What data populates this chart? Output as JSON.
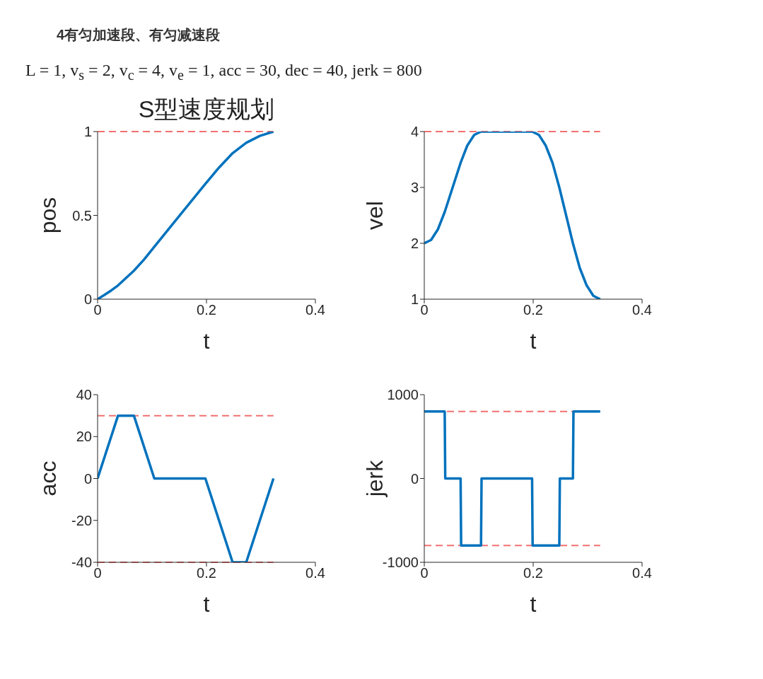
{
  "chart_data": [
    {
      "type": "line",
      "title": "S型速度规划",
      "annotations": [
        "4有匀加速段、有匀减速段",
        "L = 1, v$_{s}$ = 2, v$_{c}$ = 4, v$_{e}$ = 1, acc = 30, dec = 40, jerk = 800"
      ],
      "xlabel": "t",
      "ylabel": "pos",
      "xlim": [
        0,
        0.4
      ],
      "xticks": [
        0,
        0.2,
        0.4
      ],
      "ylim": [
        0,
        1
      ],
      "yticks": [
        0,
        0.5,
        1
      ],
      "series": [
        {
          "color": "#0072bd",
          "x": [
            0,
            0.0125,
            0.025,
            0.0375,
            0.0667,
            0.0854,
            0.1042,
            0.198,
            0.223,
            0.248,
            0.273,
            0.298,
            0.323
          ],
          "values": [
            0,
            0.025,
            0.052,
            0.082,
            0.17,
            0.237,
            0.313,
            0.688,
            0.785,
            0.871,
            0.933,
            0.974,
            1
          ]
        }
      ],
      "ref_lines": [
        {
          "axis": "y",
          "value": 1,
          "color": "#f27070",
          "line_style": "dashed"
        }
      ]
    },
    {
      "type": "line",
      "xlabel": "t",
      "ylabel": "vel",
      "xlim": [
        0,
        0.4
      ],
      "xticks": [
        0,
        0.2,
        0.4
      ],
      "ylim": [
        1,
        4
      ],
      "yticks": [
        1,
        2,
        3,
        4
      ],
      "series": [
        {
          "color": "#0072bd",
          "x": [
            0,
            0.0125,
            0.025,
            0.0375,
            0.0667,
            0.079,
            0.0917,
            0.1042,
            0.198,
            0.2105,
            0.223,
            0.2355,
            0.248,
            0.273,
            0.2855,
            0.298,
            0.3105,
            0.323
          ],
          "values": [
            2,
            2.06,
            2.25,
            2.56,
            3.44,
            3.75,
            3.94,
            4,
            4,
            3.94,
            3.75,
            3.44,
            3,
            2,
            1.56,
            1.25,
            1.06,
            1
          ]
        }
      ],
      "ref_lines": [
        {
          "axis": "y",
          "value": 4,
          "color": "#f27070",
          "line_style": "dashed"
        }
      ]
    },
    {
      "type": "line",
      "xlabel": "t",
      "ylabel": "acc",
      "xlim": [
        0,
        0.4
      ],
      "xticks": [
        0,
        0.2,
        0.4
      ],
      "ylim": [
        -40,
        40
      ],
      "yticks": [
        -40,
        -20,
        0,
        20,
        40
      ],
      "series": [
        {
          "color": "#0072bd",
          "x": [
            0,
            0.0375,
            0.0667,
            0.1042,
            0.198,
            0.248,
            0.273,
            0.323
          ],
          "values": [
            0,
            30,
            30,
            0,
            0,
            -40,
            -40,
            0
          ]
        }
      ],
      "ref_lines": [
        {
          "axis": "y",
          "value": 30,
          "color": "#f27070",
          "line_style": "dashed"
        },
        {
          "axis": "y",
          "value": -40,
          "color": "#f27070",
          "line_style": "dashed"
        }
      ]
    },
    {
      "type": "line",
      "xlabel": "t",
      "ylabel": "jerk",
      "xlim": [
        0,
        0.4
      ],
      "xticks": [
        0,
        0.2,
        0.4
      ],
      "ylim": [
        -1000,
        1000
      ],
      "yticks": [
        -1000,
        0,
        1000
      ],
      "series": [
        {
          "color": "#0072bd",
          "x": [
            0,
            0.0375,
            0.0385,
            0.0667,
            0.0677,
            0.1042,
            0.1052,
            0.198,
            0.199,
            0.248,
            0.249,
            0.273,
            0.274,
            0.323
          ],
          "values": [
            800,
            800,
            0,
            0,
            -800,
            -800,
            0,
            0,
            -800,
            -800,
            0,
            0,
            800,
            800
          ]
        }
      ],
      "ref_lines": [
        {
          "axis": "y",
          "value": 800,
          "color": "#f27070",
          "line_style": "dashed"
        },
        {
          "axis": "y",
          "value": -800,
          "color": "#f27070",
          "line_style": "dashed"
        }
      ]
    }
  ]
}
